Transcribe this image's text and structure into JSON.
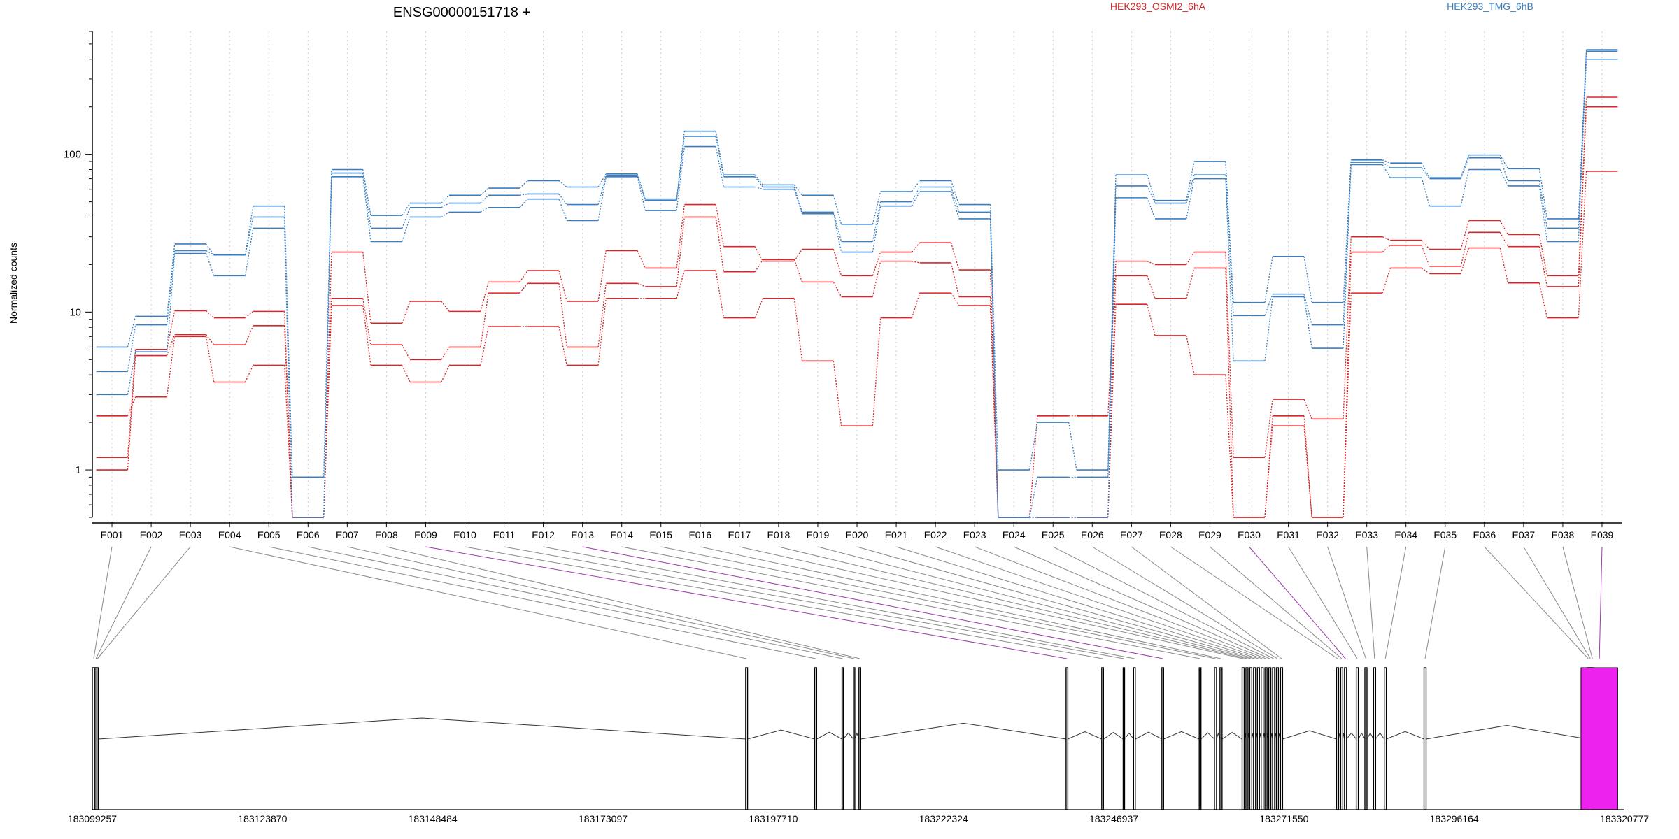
{
  "header": {
    "gene_id": "ENSG00000151718 +",
    "legend": [
      {
        "label": "HEK293_OSMI2_6hA",
        "color": "#d62728"
      },
      {
        "label": "HEK293_TMG_6hB",
        "color": "#3a7ebf"
      }
    ]
  },
  "chart_data": {
    "type": "line",
    "title": "ENSG00000151718 +",
    "ylabel": "Normalized counts",
    "yscale": "log",
    "ylim": [
      0.5,
      600
    ],
    "yticks": [
      1,
      10,
      100
    ],
    "ytick_labels": [
      "1",
      "10",
      "100"
    ],
    "grid": "vertical dotted lines at each exon",
    "legend_placement": "top",
    "categories": [
      "E001",
      "E002",
      "E003",
      "E004",
      "E005",
      "E006",
      "E007",
      "E008",
      "E009",
      "E010",
      "E011",
      "E012",
      "E013",
      "E014",
      "E015",
      "E016",
      "E017",
      "E018",
      "E019",
      "E020",
      "E021",
      "E022",
      "E023",
      "E024",
      "E025",
      "E026",
      "E027",
      "E028",
      "E029",
      "E030",
      "E031",
      "E032",
      "E033",
      "E034",
      "E035",
      "E036",
      "E037",
      "E038",
      "E039"
    ],
    "series": [
      {
        "name": "HEK293_OSMI2_6hA",
        "color": "#d62728",
        "values": [
          1.2,
          5.8,
          10.2,
          9.2,
          10.1,
          0.5,
          24,
          8.5,
          11.7,
          10.1,
          15.5,
          18.3,
          11.7,
          24.5,
          19,
          48,
          26,
          21,
          25,
          17,
          24,
          27.5,
          18.5,
          0.5,
          2.2,
          2.2,
          21,
          20,
          24,
          1.2,
          2.8,
          2.1,
          30,
          28.5,
          25,
          38,
          31,
          17,
          230
        ]
      },
      {
        "color": "#d62728",
        "values": [
          1.0,
          5.3,
          7.2,
          6.2,
          8.2,
          0.5,
          12.2,
          6.2,
          5.0,
          6.0,
          13.2,
          15.2,
          6.0,
          15.2,
          14.5,
          40,
          18,
          21.5,
          15.5,
          12.5,
          21,
          20.5,
          12.5,
          0.5,
          0.5,
          0.5,
          17,
          12.2,
          19,
          0.5,
          2.2,
          0.5,
          24,
          26.5,
          19.5,
          32,
          26,
          14.5,
          200
        ]
      },
      {
        "color": "#d62728",
        "values": [
          2.2,
          2.9,
          7.0,
          3.6,
          4.6,
          0.5,
          11,
          4.6,
          3.6,
          4.6,
          8.1,
          8.1,
          4.6,
          12.2,
          12.2,
          18.3,
          9.2,
          12.2,
          4.9,
          1.9,
          9.2,
          13.2,
          11,
          0.5,
          0.5,
          0.5,
          11.2,
          7.1,
          4.0,
          0.5,
          1.9,
          0.5,
          13.2,
          19,
          17.5,
          25.5,
          15.3,
          9.2,
          78
        ]
      },
      {
        "name": "HEK293_TMG_6hB",
        "color": "#3a7ebf",
        "values": [
          6.0,
          9.4,
          27,
          23,
          47,
          0.9,
          80,
          41,
          49,
          55,
          61,
          68,
          62,
          75,
          52,
          140,
          74,
          64,
          55,
          36,
          58,
          68,
          48,
          1.0,
          2.0,
          1.0,
          74,
          51,
          90,
          11.5,
          22.5,
          11.5,
          92,
          88,
          71,
          99,
          81,
          39,
          460
        ]
      },
      {
        "color": "#3a7ebf",
        "values": [
          4.2,
          8.3,
          24.5,
          23,
          40,
          0.9,
          76,
          34,
          46,
          49,
          55,
          56,
          48,
          73,
          51,
          130,
          72,
          62,
          43,
          28,
          50,
          62,
          43,
          0.5,
          0.9,
          0.9,
          63,
          49,
          74,
          9.5,
          13,
          8.3,
          89,
          82,
          70,
          95,
          68,
          34,
          450
        ]
      },
      {
        "color": "#3a7ebf",
        "values": [
          3.0,
          5.6,
          23.5,
          17,
          34,
          0.5,
          72,
          28,
          40,
          43,
          46,
          52,
          38,
          72,
          44,
          112,
          62,
          60,
          42,
          24,
          47,
          58,
          39,
          0.5,
          0.5,
          0.5,
          53,
          39,
          70,
          4.9,
          12.5,
          5.9,
          86,
          71,
          47,
          80,
          63,
          28,
          400
        ]
      }
    ],
    "exon_map_colors": [
      "#000000",
      "#000000",
      "#000000",
      "#000000",
      "#000000",
      "#000000",
      "#000000",
      "#000000",
      "#000000",
      "#000000",
      "#000000",
      "#000000",
      "#000000",
      "#000000",
      "#000000",
      "#000000",
      "#000000",
      "#000000",
      "#000000",
      "#000000",
      "#000000",
      "#000000",
      "#000000",
      "#000000",
      "#000000",
      "#000000",
      "#000000",
      "#000000",
      "#000000",
      "#000000",
      "#000000",
      "#000000",
      "#000000",
      "#000000",
      "#000000",
      "#000000",
      "#000000",
      "#000000",
      "#ee22ee"
    ],
    "exon_line_highlight_color": "#9a3ca8",
    "highlighted_exon_links": [
      "E009",
      "E013",
      "E030",
      "E039"
    ],
    "genome_axis": {
      "range": [
        183099257,
        183320777
      ],
      "tick_labels": [
        "183099257",
        "183123870",
        "183148484",
        "183173097",
        "183197710",
        "183222324",
        "183246937",
        "183271550",
        "183296164",
        "183320777"
      ],
      "exons": [
        [
          183099257,
          183099650
        ],
        [
          183099650,
          183099900
        ],
        [
          183099900,
          183100100
        ],
        [
          183193720,
          183193990
        ],
        [
          183203700,
          183203980
        ],
        [
          183207650,
          183207830
        ],
        [
          183209300,
          183209500
        ],
        [
          183210100,
          183210350
        ],
        [
          183240050,
          183240300
        ],
        [
          183245200,
          183245450
        ],
        [
          183248300,
          183248500
        ],
        [
          183249800,
          183250050
        ],
        [
          183253900,
          183254150
        ],
        [
          183259300,
          183259550
        ],
        [
          183261500,
          183261800
        ],
        [
          183262300,
          183262600
        ],
        [
          183265500,
          183265800
        ],
        [
          183266050,
          183266350
        ],
        [
          183266600,
          183266900
        ],
        [
          183267150,
          183267450
        ],
        [
          183267700,
          183268000
        ],
        [
          183268250,
          183268550
        ],
        [
          183268800,
          183269100
        ],
        [
          183269350,
          183269650
        ],
        [
          183269900,
          183270200
        ],
        [
          183270450,
          183270750
        ],
        [
          183271050,
          183271350
        ],
        [
          183279150,
          183279450
        ],
        [
          183279750,
          183280050
        ],
        [
          183280300,
          183280600
        ],
        [
          183282000,
          183282300
        ],
        [
          183283250,
          183283550
        ],
        [
          183284500,
          183284800
        ],
        [
          183286050,
          183286350
        ],
        [
          183291800,
          183292100
        ],
        [
          183315400,
          183315700
        ],
        [
          183315700,
          183316000
        ],
        [
          183316000,
          183316300
        ],
        [
          183314500,
          183319800
        ]
      ]
    }
  }
}
